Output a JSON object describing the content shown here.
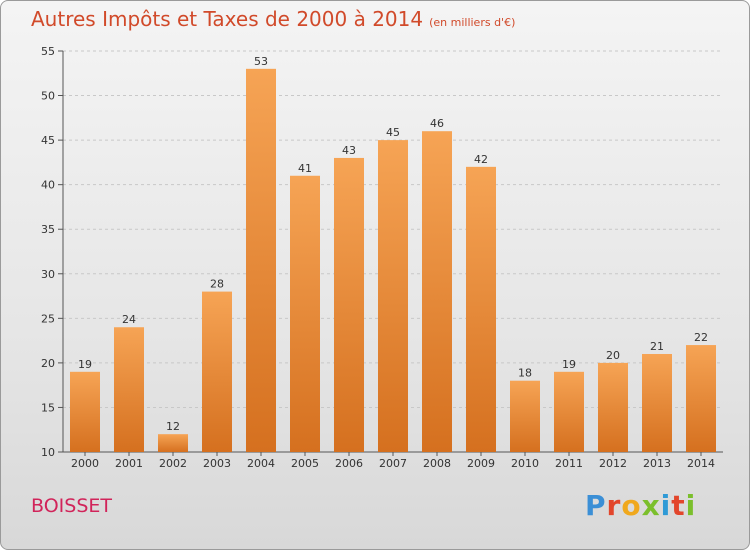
{
  "header": {
    "title": "Autres Impôts et Taxes de 2000 à 2014",
    "subtitle": "(en milliers d'€)"
  },
  "footer": {
    "commune": "BOISSET",
    "logo_letters": [
      "P",
      "r",
      "o",
      "x",
      "i",
      "t",
      "i"
    ],
    "logo_colors": [
      "#3b8fd6",
      "#e2462c",
      "#f0a81d",
      "#7bbf2c",
      "#2f9ad6",
      "#e2462c",
      "#7bbf2c"
    ]
  },
  "colors": {
    "bar_top": "#f6a455",
    "bar_bottom": "#d5701f",
    "title": "#d14a2a",
    "commune": "#d1245a"
  },
  "chart_data": {
    "type": "bar",
    "title": "Autres Impôts et Taxes de 2000 à 2014",
    "subtitle": "(en milliers d'€)",
    "categories": [
      "2000",
      "2001",
      "2002",
      "2003",
      "2004",
      "2005",
      "2006",
      "2007",
      "2008",
      "2009",
      "2010",
      "2011",
      "2012",
      "2013",
      "2014"
    ],
    "values": [
      19,
      24,
      12,
      28,
      53,
      41,
      43,
      45,
      46,
      42,
      18,
      19,
      20,
      21,
      22
    ],
    "ylim": [
      10,
      55
    ],
    "yticks": [
      10,
      15,
      20,
      25,
      30,
      35,
      40,
      45,
      50,
      55
    ],
    "grid": true
  }
}
